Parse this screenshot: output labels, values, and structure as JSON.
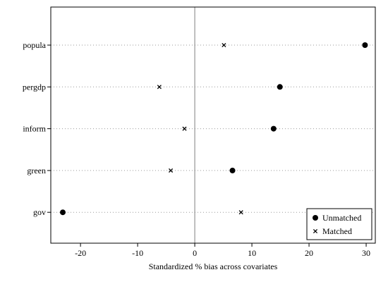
{
  "chart_data": {
    "type": "scatter",
    "title": "",
    "xlabel": "Standardized % bias across covariates",
    "ylabel": "",
    "xlim": [
      -25.2,
      31.6
    ],
    "xticks": [
      -20,
      -10,
      0,
      10,
      20,
      30
    ],
    "xtick_labels": [
      "-20",
      "-10",
      "0",
      "10",
      "20",
      "30"
    ],
    "categories": [
      "popula",
      "pergdp",
      "inform",
      "green",
      "gov"
    ],
    "reference_line_x": 0,
    "grid": "dotted horizontal lines at each category",
    "legend_position": "bottom-right",
    "series": [
      {
        "name": "Unmatched",
        "marker": "circle",
        "values": [
          29.8,
          14.9,
          13.8,
          6.6,
          -23.1
        ]
      },
      {
        "name": "Matched",
        "marker": "x",
        "values": [
          5.1,
          -6.2,
          -1.8,
          -4.2,
          8.1
        ]
      }
    ]
  }
}
